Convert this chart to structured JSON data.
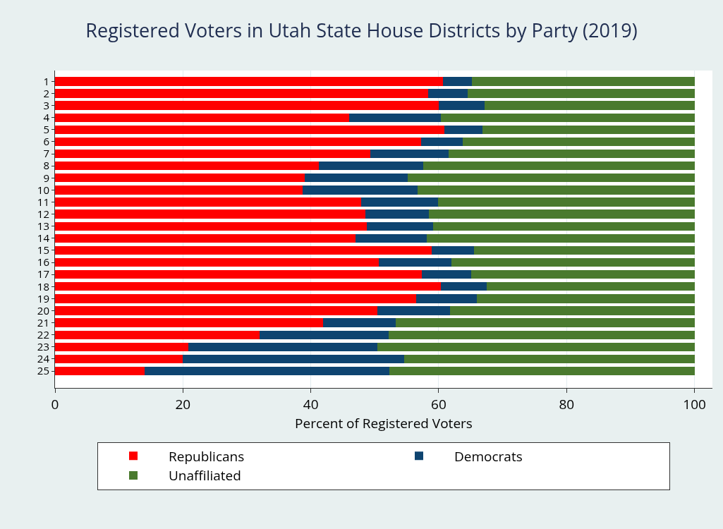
{
  "chart_data": {
    "type": "bar",
    "orientation": "horizontal",
    "stacked": true,
    "title": "Registered Voters in Utah State House Districts by Party (2019)",
    "xlabel": "Percent of Registered Voters",
    "categories": [
      "1",
      "2",
      "3",
      "4",
      "5",
      "6",
      "7",
      "8",
      "9",
      "10",
      "11",
      "12",
      "13",
      "14",
      "15",
      "16",
      "17",
      "18",
      "19",
      "20",
      "21",
      "22",
      "23",
      "24",
      "25"
    ],
    "series": [
      {
        "name": "Republicans",
        "color": "#ff0000",
        "values": [
          60.7,
          58.3,
          60.0,
          46.0,
          60.9,
          57.2,
          49.3,
          41.2,
          39.1,
          38.7,
          47.9,
          48.5,
          48.8,
          47.0,
          58.9,
          50.6,
          57.4,
          60.3,
          56.5,
          50.4,
          41.9,
          32.0,
          20.8,
          20.0,
          14.0
        ]
      },
      {
        "name": "Democrats",
        "color": "#0e4470",
        "values": [
          4.5,
          6.2,
          7.2,
          14.3,
          5.9,
          6.6,
          12.2,
          16.4,
          16.1,
          18.0,
          12.0,
          10.0,
          10.3,
          11.1,
          6.6,
          11.4,
          7.7,
          7.2,
          9.5,
          11.4,
          11.4,
          20.2,
          29.6,
          34.6,
          38.3
        ]
      },
      {
        "name": "Unaffiliated",
        "color": "#4a7a2e",
        "values": [
          34.8,
          35.5,
          32.8,
          39.7,
          33.2,
          36.2,
          38.5,
          42.4,
          44.8,
          43.3,
          40.1,
          41.5,
          40.9,
          41.9,
          34.5,
          38.0,
          34.9,
          32.5,
          34.0,
          38.2,
          46.7,
          47.8,
          49.6,
          45.4,
          47.7
        ]
      }
    ],
    "xlim": [
      0,
      102.8
    ],
    "xticks": [
      0,
      20,
      40,
      60,
      80,
      100
    ],
    "grid": "x",
    "legend": "bottom"
  }
}
